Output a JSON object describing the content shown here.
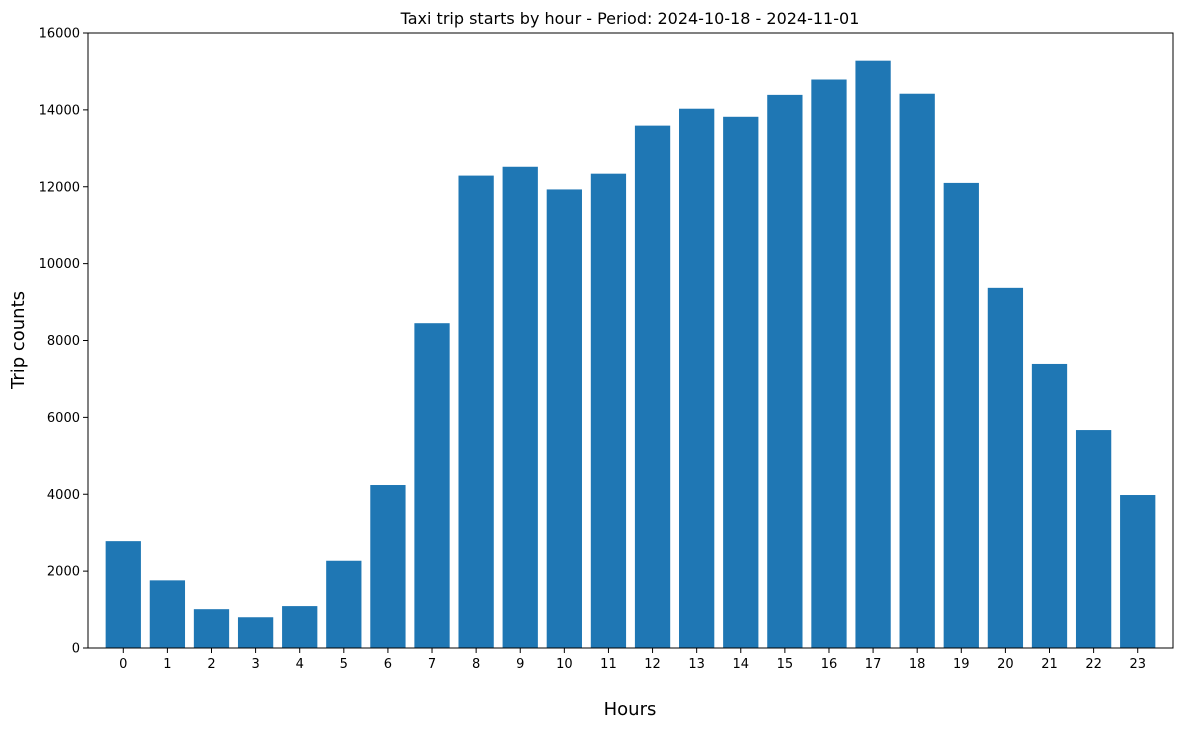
{
  "chart_data": {
    "type": "bar",
    "title": "Taxi trip starts by hour - Period: 2024-10-18 - 2024-11-01",
    "xlabel": "Hours",
    "ylabel": "Trip counts",
    "categories": [
      "0",
      "1",
      "2",
      "3",
      "4",
      "5",
      "6",
      "7",
      "8",
      "9",
      "10",
      "11",
      "12",
      "13",
      "14",
      "15",
      "16",
      "17",
      "18",
      "19",
      "20",
      "21",
      "22",
      "23"
    ],
    "values": [
      2780,
      1760,
      1010,
      800,
      1090,
      2270,
      4240,
      8450,
      12290,
      12520,
      11930,
      12340,
      13590,
      14030,
      13820,
      14390,
      14790,
      15280,
      14420,
      12100,
      9370,
      7390,
      5670,
      3980
    ],
    "ylim": [
      0,
      16000
    ],
    "yticks": [
      "0",
      "2000",
      "4000",
      "6000",
      "8000",
      "10000",
      "12000",
      "14000",
      "16000"
    ],
    "grid": false,
    "bar_color": "#1f77b4"
  }
}
